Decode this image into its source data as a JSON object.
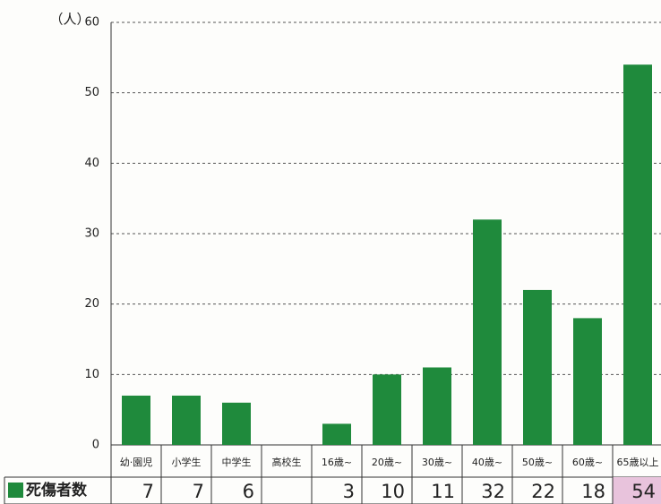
{
  "chart_data": {
    "type": "bar",
    "y_label": "（人）",
    "categories": [
      "幼·園児",
      "小学生",
      "中学生",
      "高校生",
      "16歳~",
      "20歳~",
      "30歳~",
      "40歳~",
      "50歳~",
      "60歳~",
      "65歳以上"
    ],
    "series": [
      {
        "name": "死傷者数",
        "color": "#1f8a3c",
        "values": [
          7,
          7,
          6,
          null,
          3,
          10,
          11,
          32,
          22,
          18,
          54
        ]
      }
    ],
    "ylim": [
      0,
      60
    ],
    "yticks": [
      0,
      10,
      20,
      30,
      40,
      50,
      60
    ],
    "grid": true
  }
}
